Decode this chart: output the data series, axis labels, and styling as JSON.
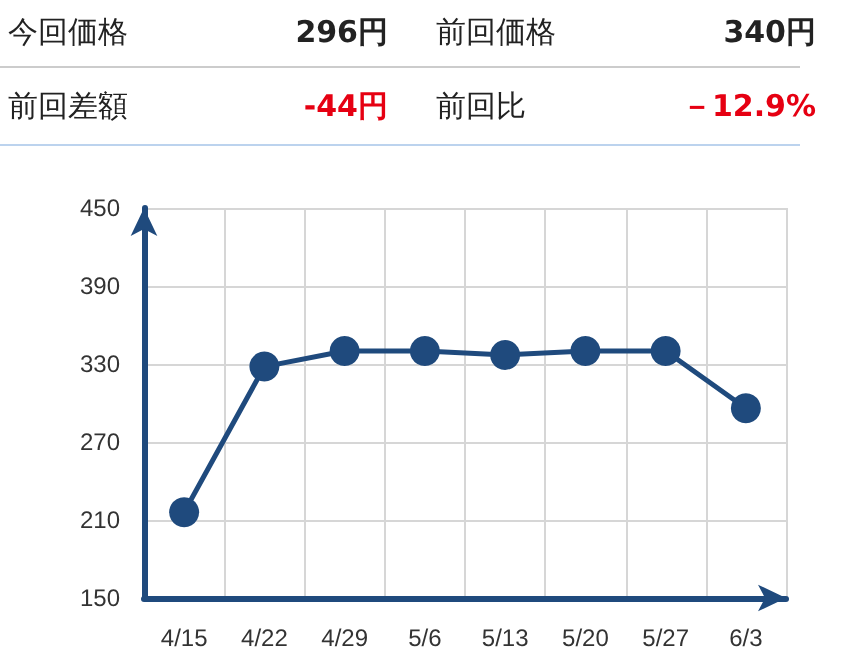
{
  "chart_data": {
    "type": "line",
    "annotations": [
      "今回価格",
      "296円",
      "前回価格",
      "340円",
      "前回差額",
      "-44円",
      "前回比",
      "－12.9%"
    ],
    "categories": [
      "4/15",
      "4/22",
      "4/29",
      "5/6",
      "5/13",
      "5/20",
      "5/27",
      "6/3"
    ],
    "series": [
      {
        "color": "#1f4a7d",
        "values": [
          216,
          328,
          340,
          340,
          337,
          340,
          340,
          296
        ]
      }
    ],
    "ylim": [
      150,
      450
    ],
    "yticks": [
      150,
      210,
      270,
      330,
      390,
      450
    ],
    "grid": true,
    "marker": "circle",
    "line_style": "solid"
  }
}
